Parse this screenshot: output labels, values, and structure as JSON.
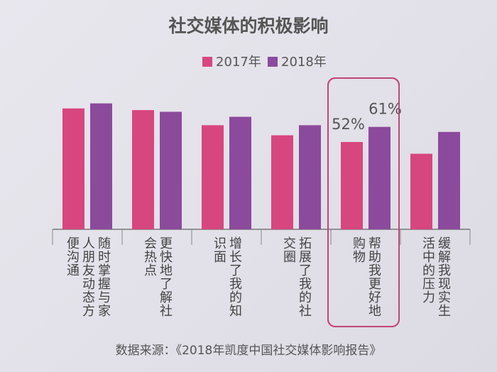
{
  "chart_data": {
    "type": "bar",
    "title": "社交媒体的积极影响",
    "categories": [
      "随时掌握与家人朋友动态方便沟通",
      "更快地了解社会热点",
      "增长了我的知识面",
      "拓展了我的社交圈",
      "帮助我更好地购物",
      "缓解我现实生活中的压力"
    ],
    "series": [
      {
        "name": "2017年",
        "color": "#d8467f",
        "values": [
          72,
          71,
          62,
          56,
          52,
          45
        ],
        "value_labels": [
          null,
          null,
          null,
          null,
          "52%",
          null
        ]
      },
      {
        "name": "2018年",
        "color": "#8c4a9c",
        "values": [
          75,
          70,
          67,
          62,
          61,
          58
        ],
        "value_labels": [
          null,
          null,
          null,
          null,
          "61%",
          null
        ]
      }
    ],
    "source": "数据来源：《2018年凯度中国社交媒体影响报告》"
  }
}
